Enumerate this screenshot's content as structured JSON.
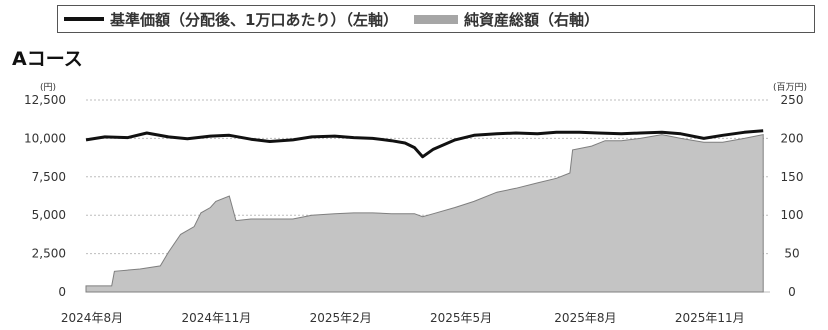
{
  "legend": {
    "line_label": "基準価額（分配後、1万口あたり）（左軸）",
    "area_label": "純資産総額（右軸）"
  },
  "course_title": "Aコース",
  "colors": {
    "line": "#111111",
    "area_fill": "#c4c4c4",
    "area_stroke": "#7f7f7f",
    "grid": "#bdbdbd"
  },
  "chart_data": {
    "type": "line",
    "title": "Aコース",
    "left_axis": {
      "unit": "(円)",
      "ylim": [
        0,
        12500
      ],
      "ticks": [
        "0",
        "2,500",
        "5,000",
        "7,500",
        "10,000",
        "12,500"
      ]
    },
    "right_axis": {
      "unit": "(百万円)",
      "ylim": [
        0,
        250
      ],
      "ticks": [
        "0",
        "50",
        "100",
        "150",
        "200",
        "250"
      ]
    },
    "x_ticks": [
      "2024年8月",
      "2024年11月",
      "2025年2月",
      "2025年5月",
      "2025年8月",
      "2025年11月"
    ],
    "grid": true,
    "series": [
      {
        "name": "基準価額（分配後、1万口あたり）（左軸）",
        "axis": "left",
        "type": "line",
        "x": [
          "2024-08-01",
          "2024-08-15",
          "2024-09-01",
          "2024-09-15",
          "2024-10-01",
          "2024-10-15",
          "2024-11-01",
          "2024-11-15",
          "2024-12-01",
          "2024-12-15",
          "2025-01-01",
          "2025-01-15",
          "2025-02-01",
          "2025-02-15",
          "2025-03-01",
          "2025-03-15",
          "2025-03-25",
          "2025-04-01",
          "2025-04-07",
          "2025-04-15",
          "2025-05-01",
          "2025-05-15",
          "2025-06-01",
          "2025-06-15",
          "2025-07-01",
          "2025-07-15",
          "2025-08-01",
          "2025-08-15",
          "2025-09-01",
          "2025-09-15",
          "2025-10-01",
          "2025-10-15",
          "2025-11-01",
          "2025-11-15",
          "2025-12-01",
          "2025-12-15"
        ],
        "values": [
          9900,
          10100,
          10050,
          10350,
          10100,
          9980,
          10150,
          10200,
          9950,
          9800,
          9900,
          10100,
          10150,
          10050,
          10000,
          9850,
          9700,
          9400,
          8800,
          9300,
          9900,
          10200,
          10300,
          10350,
          10300,
          10400,
          10400,
          10350,
          10300,
          10350,
          10400,
          10300,
          10000,
          10200,
          10400,
          10500
        ]
      },
      {
        "name": "純資産総額（右軸）",
        "axis": "right",
        "type": "area",
        "x": [
          "2024-08-01",
          "2024-08-20",
          "2024-08-22",
          "2024-09-10",
          "2024-09-25",
          "2024-10-01",
          "2024-10-10",
          "2024-10-20",
          "2024-10-25",
          "2024-11-01",
          "2024-11-05",
          "2024-11-15",
          "2024-11-20",
          "2024-12-01",
          "2024-12-15",
          "2025-01-01",
          "2025-01-15",
          "2025-02-01",
          "2025-02-15",
          "2025-03-01",
          "2025-03-15",
          "2025-04-01",
          "2025-04-07",
          "2025-04-15",
          "2025-05-01",
          "2025-05-15",
          "2025-06-01",
          "2025-06-15",
          "2025-07-01",
          "2025-07-15",
          "2025-07-25",
          "2025-07-27",
          "2025-08-10",
          "2025-08-20",
          "2025-09-01",
          "2025-09-15",
          "2025-10-01",
          "2025-10-15",
          "2025-11-01",
          "2025-11-15",
          "2025-12-01",
          "2025-12-15"
        ],
        "values": [
          8,
          8,
          27,
          30,
          34,
          52,
          75,
          85,
          103,
          110,
          118,
          125,
          93,
          95,
          95,
          95,
          100,
          102,
          103,
          103,
          102,
          102,
          98,
          102,
          110,
          118,
          130,
          135,
          142,
          148,
          155,
          185,
          190,
          197,
          197,
          200,
          205,
          200,
          195,
          195,
          200,
          205
        ]
      }
    ]
  }
}
